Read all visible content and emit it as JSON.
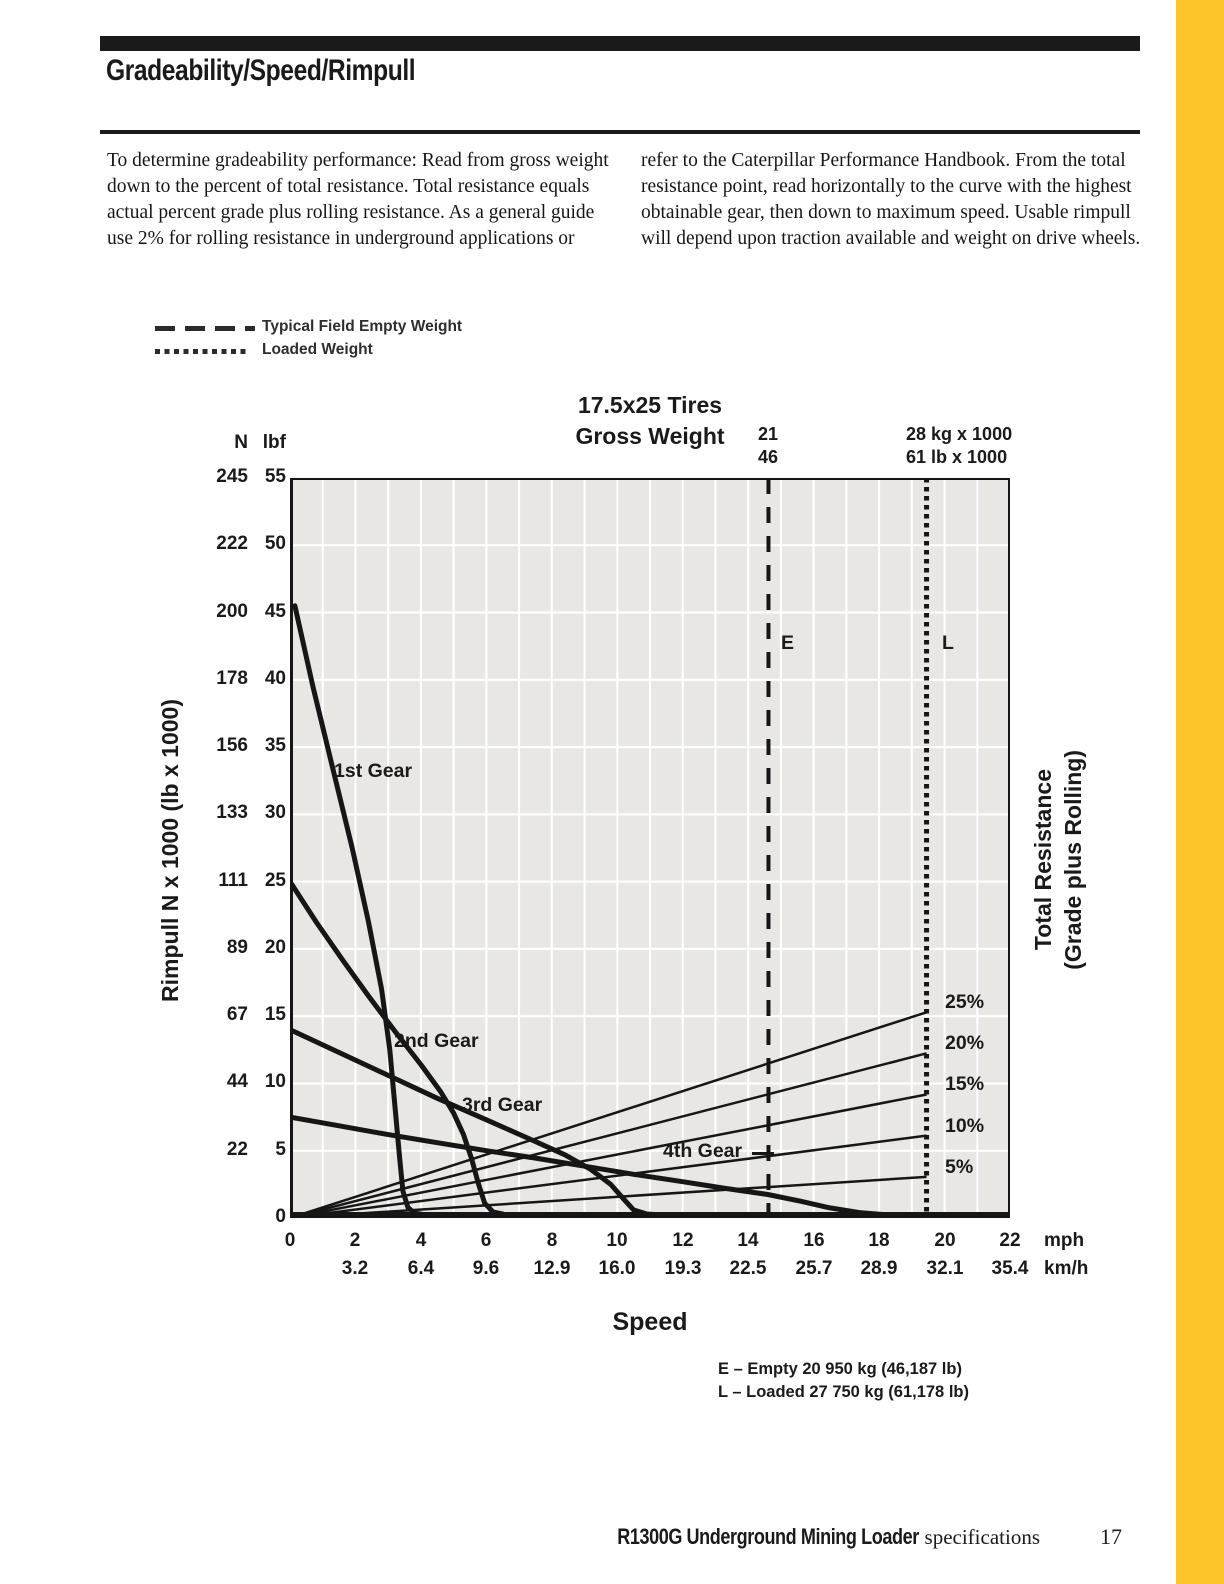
{
  "page": {
    "heading": "Gradeability/Speed/Rimpull",
    "footer_title": "R1300G Underground Mining Loader",
    "footer_suffix": " specifications",
    "page_number": "17",
    "accent_yellow": "#FDC52A"
  },
  "intro": {
    "col1": "To determine gradeability performance: Read from gross weight\ndown to the percent of total resistance. Total resistance equals\nactual percent grade plus rolling resistance. As a general guide\nuse 2% for rolling resistance in underground applications or",
    "col2": "refer to the Caterpillar Performance Handbook. From the total\nresistance point, read horizontally to the curve with the highest\nobtainable gear, then down to maximum speed. Usable rimpull\nwill depend upon traction available and weight on drive wheels."
  },
  "legend": {
    "empty": {
      "label": "Typical Field Empty Weight",
      "style": "dashed"
    },
    "loaded": {
      "label": "Loaded Weight",
      "style": "dotted"
    }
  },
  "chart_data": {
    "type": "line",
    "title_line1": "17.5x25 Tires",
    "title_line2": "Gross Weight",
    "xlabel": "Speed",
    "ylabel_left": "Rimpull  N x 1000 (lb x 1000)",
    "ylabel_right_line1": "Total Resistance",
    "ylabel_right_line2": "(Grade plus Rolling)",
    "x_range_mph": [
      0,
      22
    ],
    "y_range_lbf": [
      0,
      55
    ],
    "grid": {
      "x_step_mph": 1,
      "y_step_lbf": 5
    },
    "axis_units": {
      "y_col1": "N",
      "y_col2": "lbf",
      "x_row1": "mph",
      "x_row2": "km/h"
    },
    "y_ticks": [
      {
        "n": "245",
        "lbf": "55",
        "v": 55
      },
      {
        "n": "222",
        "lbf": "50",
        "v": 50
      },
      {
        "n": "200",
        "lbf": "45",
        "v": 45
      },
      {
        "n": "178",
        "lbf": "40",
        "v": 40
      },
      {
        "n": "156",
        "lbf": "35",
        "v": 35
      },
      {
        "n": "133",
        "lbf": "30",
        "v": 30
      },
      {
        "n": "111",
        "lbf": "25",
        "v": 25
      },
      {
        "n": "89",
        "lbf": "20",
        "v": 20
      },
      {
        "n": "67",
        "lbf": "15",
        "v": 15
      },
      {
        "n": "44",
        "lbf": "10",
        "v": 10
      },
      {
        "n": "22",
        "lbf": "5",
        "v": 5
      },
      {
        "n": "",
        "lbf": "0",
        "v": 0
      }
    ],
    "x_ticks_mph": [
      {
        "label": "0",
        "v": 0
      },
      {
        "label": "2",
        "v": 2
      },
      {
        "label": "4",
        "v": 4
      },
      {
        "label": "6",
        "v": 6
      },
      {
        "label": "8",
        "v": 8
      },
      {
        "label": "10",
        "v": 10
      },
      {
        "label": "12",
        "v": 12
      },
      {
        "label": "14",
        "v": 14
      },
      {
        "label": "16",
        "v": 16
      },
      {
        "label": "18",
        "v": 18
      },
      {
        "label": "20",
        "v": 20
      },
      {
        "label": "22",
        "v": 22
      }
    ],
    "x_ticks_kmh": [
      {
        "label": "3.2",
        "v": 2
      },
      {
        "label": "6.4",
        "v": 4
      },
      {
        "label": "9.6",
        "v": 6
      },
      {
        "label": "12.9",
        "v": 8
      },
      {
        "label": "16.0",
        "v": 10
      },
      {
        "label": "19.3",
        "v": 12
      },
      {
        "label": "22.5",
        "v": 14
      },
      {
        "label": "25.7",
        "v": 16
      },
      {
        "label": "28.9",
        "v": 18
      },
      {
        "label": "32.1",
        "v": 20
      },
      {
        "label": "35.4",
        "v": 22
      }
    ],
    "top_axis": {
      "empty_line1": "21",
      "empty_line2": "46",
      "loaded_line1": "28 kg x 1000",
      "loaded_line2": "61 lb x 1000"
    },
    "weight_lines": {
      "empty_mph": 14.62,
      "empty_label": "E",
      "loaded_mph": 19.45,
      "loaded_label": "L"
    },
    "grade_lines": [
      {
        "label": "5%",
        "pct": 5,
        "end_lbf": 3.06
      },
      {
        "label": "10%",
        "pct": 10,
        "end_lbf": 6.12
      },
      {
        "label": "15%",
        "pct": 15,
        "end_lbf": 9.18
      },
      {
        "label": "20%",
        "pct": 20,
        "end_lbf": 12.24
      },
      {
        "label": "25%",
        "pct": 25,
        "end_lbf": 15.29
      }
    ],
    "gears": [
      {
        "label": "1st Gear",
        "points": [
          [
            0.15,
            45.5
          ],
          [
            0.7,
            39.5
          ],
          [
            1.3,
            33.5
          ],
          [
            1.9,
            27.5
          ],
          [
            2.4,
            22
          ],
          [
            2.8,
            17
          ],
          [
            3.05,
            12.5
          ],
          [
            3.2,
            8.5
          ],
          [
            3.35,
            4.5
          ],
          [
            3.45,
            2
          ],
          [
            3.6,
            0.8
          ],
          [
            3.8,
            0.35
          ],
          [
            4.0,
            0.3
          ]
        ]
      },
      {
        "label": "2nd Gear",
        "points": [
          [
            0,
            25
          ],
          [
            0.8,
            22
          ],
          [
            1.6,
            19.2
          ],
          [
            2.4,
            16.5
          ],
          [
            3.2,
            13.9
          ],
          [
            4.0,
            11.4
          ],
          [
            4.6,
            9.4
          ],
          [
            5.0,
            7.8
          ],
          [
            5.3,
            6.2
          ],
          [
            5.55,
            4.4
          ],
          [
            5.75,
            2.6
          ],
          [
            5.95,
            1.1
          ],
          [
            6.2,
            0.45
          ],
          [
            6.5,
            0.3
          ]
        ]
      },
      {
        "label": "3rd Gear",
        "points": [
          [
            0,
            14
          ],
          [
            1.5,
            12.3
          ],
          [
            3.0,
            10.6
          ],
          [
            4.5,
            8.9
          ],
          [
            6.0,
            7.3
          ],
          [
            7.3,
            5.9
          ],
          [
            8.4,
            4.7
          ],
          [
            9.2,
            3.6
          ],
          [
            9.8,
            2.5
          ],
          [
            10.2,
            1.4
          ],
          [
            10.5,
            0.6
          ],
          [
            10.9,
            0.3
          ],
          [
            11.2,
            0.25
          ]
        ]
      },
      {
        "label": "4th Gear",
        "points": [
          [
            0,
            7.5
          ],
          [
            1.5,
            6.85
          ],
          [
            3,
            6.2
          ],
          [
            4.5,
            5.6
          ],
          [
            6,
            5.0
          ],
          [
            7.5,
            4.45
          ],
          [
            9,
            3.85
          ],
          [
            10.5,
            3.25
          ],
          [
            12,
            2.7
          ],
          [
            13.3,
            2.2
          ],
          [
            14.6,
            1.75
          ],
          [
            15.6,
            1.25
          ],
          [
            16.5,
            0.75
          ],
          [
            17.4,
            0.4
          ],
          [
            18.3,
            0.22
          ],
          [
            19.5,
            0.15
          ],
          [
            21.3,
            0.12
          ]
        ]
      }
    ],
    "footnote_line1": "E – Empty 20 950 kg (46,187 lb)",
    "footnote_line2": "L – Loaded 27 750 kg (61,178 lb)"
  }
}
